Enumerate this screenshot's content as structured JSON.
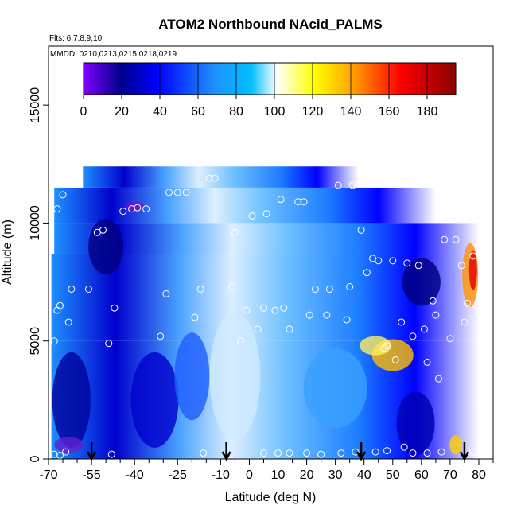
{
  "chart_data": {
    "type": "heatmap",
    "title": "ATOM2 Northbound NAcid_PALMS",
    "subtitle_flights": "Flts: 6,7,8,9,10",
    "subtitle_dates": "MMDD: 0210,0213,0215,0218,0219",
    "xlabel": "Latitude (deg N)",
    "ylabel": "Altitude (m)",
    "xlim": [
      -70,
      85
    ],
    "ylim": [
      0,
      17500
    ],
    "x_ticks": [
      -70,
      -55,
      -40,
      -25,
      -10,
      0,
      10,
      20,
      30,
      40,
      50,
      60,
      70,
      80
    ],
    "x_minor_ticks": [
      -65,
      -60,
      -50,
      -45,
      -35,
      -30,
      -20,
      -15,
      -5,
      5,
      15,
      25,
      35,
      45,
      55,
      65,
      75,
      85
    ],
    "y_ticks": [
      0,
      5000,
      10000,
      15000
    ],
    "colorbar": {
      "ticks": [
        0,
        20,
        40,
        60,
        80,
        100,
        120,
        140,
        160,
        180
      ],
      "range": [
        0,
        195
      ],
      "colors": [
        "#8000FF",
        "#00008B",
        "#0000FF",
        "#1E90FF",
        "#00BFFF",
        "#FFFFFF",
        "#FFFF00",
        "#FFA500",
        "#FF0000",
        "#8B0000"
      ]
    },
    "flight_tracks_m": [
      {
        "x": -68,
        "y": 200
      },
      {
        "x": -66,
        "y": 150
      },
      {
        "x": -64,
        "y": 300
      },
      {
        "x": -62,
        "y": 7200
      },
      {
        "x": -67,
        "y": 6300
      },
      {
        "x": -68,
        "y": 5000
      },
      {
        "x": -63,
        "y": 5800
      },
      {
        "x": -66,
        "y": 6500
      },
      {
        "x": -67,
        "y": 10600
      },
      {
        "x": -65,
        "y": 11200
      },
      {
        "x": -56,
        "y": 7200
      },
      {
        "x": -53,
        "y": 9600
      },
      {
        "x": -51,
        "y": 9700
      },
      {
        "x": -48,
        "y": 200
      },
      {
        "x": -49,
        "y": 4900
      },
      {
        "x": -47,
        "y": 6400
      },
      {
        "x": -44,
        "y": 10500
      },
      {
        "x": -41,
        "y": 10600
      },
      {
        "x": -39,
        "y": 10650
      },
      {
        "x": -36,
        "y": 10600
      },
      {
        "x": -31,
        "y": 5200
      },
      {
        "x": -29,
        "y": 7000
      },
      {
        "x": -28,
        "y": 11300
      },
      {
        "x": -25,
        "y": 11300
      },
      {
        "x": -22,
        "y": 11300
      },
      {
        "x": -19,
        "y": 6000
      },
      {
        "x": -17,
        "y": 7200
      },
      {
        "x": -14,
        "y": 11900
      },
      {
        "x": -12,
        "y": 11900
      },
      {
        "x": -16,
        "y": 250
      },
      {
        "x": -6,
        "y": 7300
      },
      {
        "x": -5,
        "y": 9600
      },
      {
        "x": -3,
        "y": 5000
      },
      {
        "x": -1,
        "y": 6300
      },
      {
        "x": 1,
        "y": 10300
      },
      {
        "x": 3,
        "y": 5500
      },
      {
        "x": 5,
        "y": 6400
      },
      {
        "x": 6,
        "y": 10400
      },
      {
        "x": 9,
        "y": 6300
      },
      {
        "x": 11,
        "y": 11000
      },
      {
        "x": 12,
        "y": 6400
      },
      {
        "x": 14,
        "y": 5500
      },
      {
        "x": 17,
        "y": 10900
      },
      {
        "x": 19,
        "y": 10900
      },
      {
        "x": 21,
        "y": 6100
      },
      {
        "x": 23,
        "y": 7200
      },
      {
        "x": 27,
        "y": 6100
      },
      {
        "x": 28,
        "y": 7200
      },
      {
        "x": 31,
        "y": 11600
      },
      {
        "x": 34,
        "y": 5900
      },
      {
        "x": 35,
        "y": 7300
      },
      {
        "x": 36,
        "y": 11600
      },
      {
        "x": 39,
        "y": 9700
      },
      {
        "x": 41,
        "y": 7900
      },
      {
        "x": 43,
        "y": 8500
      },
      {
        "x": 45,
        "y": 8400
      },
      {
        "x": 47,
        "y": 4700
      },
      {
        "x": 48,
        "y": 4800
      },
      {
        "x": 50,
        "y": 8400
      },
      {
        "x": 51,
        "y": 4200
      },
      {
        "x": 53,
        "y": 5800
      },
      {
        "x": 55,
        "y": 8300
      },
      {
        "x": 57,
        "y": 5200
      },
      {
        "x": 59,
        "y": 8200
      },
      {
        "x": 61,
        "y": 5500
      },
      {
        "x": 62,
        "y": 4100
      },
      {
        "x": 64,
        "y": 6700
      },
      {
        "x": 65,
        "y": 6100
      },
      {
        "x": 66,
        "y": 3400
      },
      {
        "x": 68,
        "y": 9300
      },
      {
        "x": 70,
        "y": 5100
      },
      {
        "x": 72,
        "y": 9300
      },
      {
        "x": 74,
        "y": 8200
      },
      {
        "x": 75,
        "y": 5800
      },
      {
        "x": 76,
        "y": 6600
      },
      {
        "x": 78,
        "y": 8600
      },
      {
        "x": 5,
        "y": 250
      },
      {
        "x": 10,
        "y": 250
      },
      {
        "x": 14,
        "y": 250
      },
      {
        "x": 20,
        "y": 250
      },
      {
        "x": 25,
        "y": 200
      },
      {
        "x": 32,
        "y": 250
      },
      {
        "x": 37,
        "y": 300
      },
      {
        "x": 44,
        "y": 300
      },
      {
        "x": 48,
        "y": 350
      },
      {
        "x": 54,
        "y": 500
      },
      {
        "x": 57,
        "y": 250
      },
      {
        "x": 62,
        "y": 250
      },
      {
        "x": 67,
        "y": 300
      },
      {
        "x": 78,
        "y": 300
      }
    ],
    "markers_lat": [
      -55,
      -8,
      39,
      75
    ]
  }
}
